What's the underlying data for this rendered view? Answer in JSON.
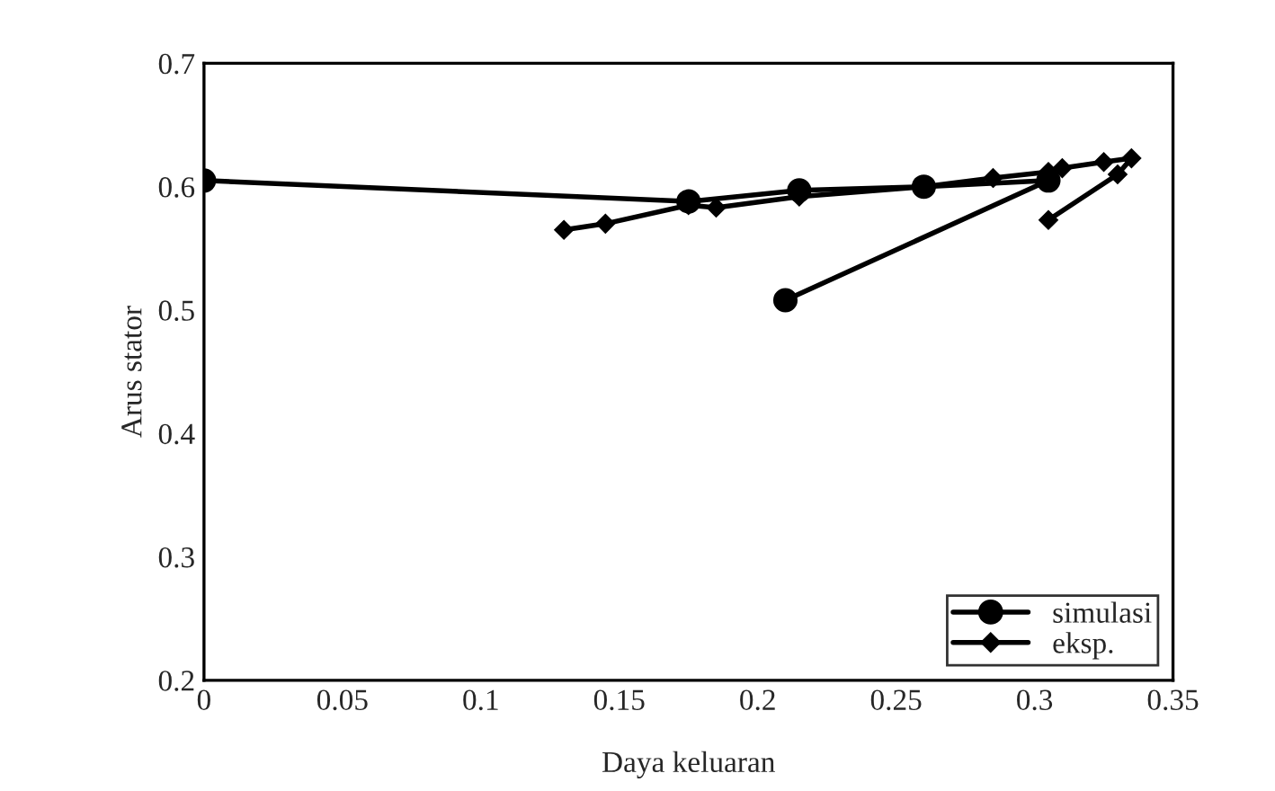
{
  "chart_data": {
    "type": "line",
    "xlabel": "Daya keluaran",
    "ylabel": "Arus stator",
    "xlim": [
      0,
      0.35
    ],
    "ylim": [
      0.2,
      0.7
    ],
    "xticks": [
      0,
      0.05,
      0.1,
      0.15,
      0.2,
      0.25,
      0.3,
      0.35
    ],
    "yticks": [
      0.2,
      0.3,
      0.4,
      0.5,
      0.6,
      0.7
    ],
    "grid": false,
    "legend": "bottom right",
    "series": [
      {
        "name": "simulasi",
        "color": "#000000",
        "marker": "circle",
        "x": [
          0,
          0.175,
          0.215,
          0.26,
          0.305,
          0.21
        ],
        "values": [
          0.605,
          0.588,
          0.597,
          0.6,
          0.605,
          0.508
        ]
      },
      {
        "name": "eksp.",
        "color": "#000000",
        "marker": "diamond",
        "x": [
          0.13,
          0.145,
          0.175,
          0.185,
          0.215,
          0.26,
          0.285,
          0.305,
          0.31,
          0.325,
          0.335,
          0.33,
          0.305
        ],
        "values": [
          0.565,
          0.57,
          0.585,
          0.583,
          0.592,
          0.6,
          0.607,
          0.612,
          0.615,
          0.62,
          0.623,
          0.61,
          0.573
        ]
      }
    ]
  }
}
